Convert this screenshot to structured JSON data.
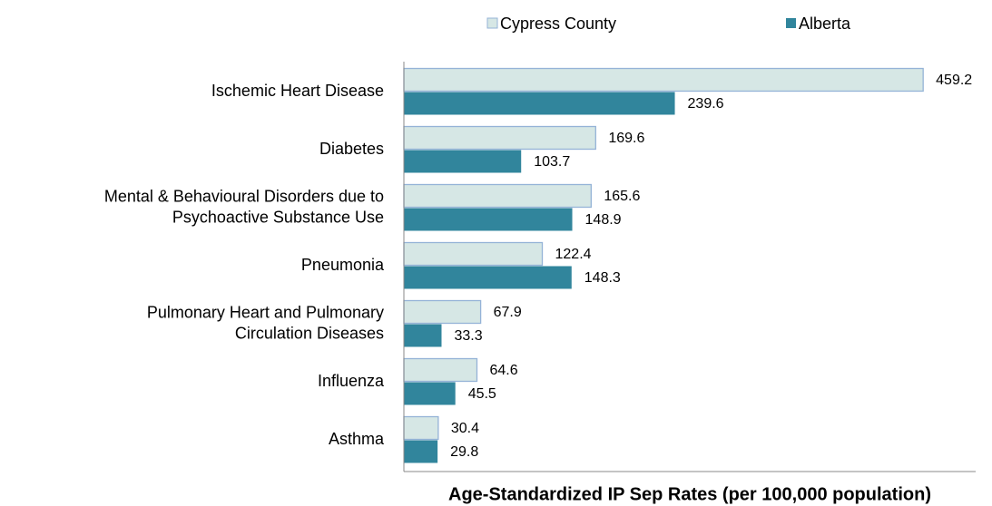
{
  "chart_data": {
    "type": "hbar",
    "categories": [
      [
        "Ischemic Heart Disease"
      ],
      [
        "Diabetes"
      ],
      [
        "Mental & Behavioural Disorders due to",
        "Psychoactive Substance Use"
      ],
      [
        "Pneumonia"
      ],
      [
        "Pulmonary Heart and Pulmonary",
        "Circulation Diseases"
      ],
      [
        "Influenza"
      ],
      [
        "Asthma"
      ]
    ],
    "series": [
      {
        "name": "Cypress County",
        "color": "#d6e7e5",
        "edge": "#95b3d7",
        "values": [
          459.2,
          169.6,
          165.6,
          122.4,
          67.9,
          64.6,
          30.4
        ]
      },
      {
        "name": "Alberta",
        "color": "#31859c",
        "values": [
          239.6,
          103.7,
          148.9,
          148.3,
          33.3,
          45.5,
          29.8
        ]
      }
    ],
    "xlabel": "Age-Standardized IP Sep Rates (per 100,000 population)",
    "xlim": [
      0,
      500
    ]
  }
}
